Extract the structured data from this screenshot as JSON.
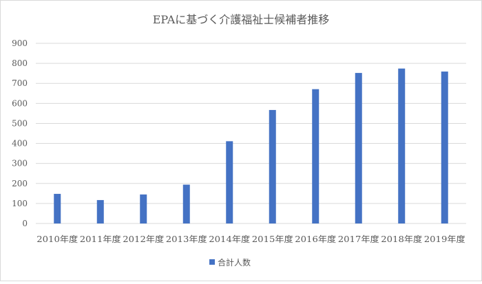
{
  "chart_data": {
    "type": "bar",
    "title": "EPAに基づく介護福祉士候補者推移",
    "categories": [
      "2010年度",
      "2011年度",
      "2012年度",
      "2013年度",
      "2014年度",
      "2015年度",
      "2016年度",
      "2017年度",
      "2018年度",
      "2019年度"
    ],
    "series": [
      {
        "name": "合計人数",
        "values": [
          148,
          117,
          145,
          194,
          411,
          567,
          671,
          752,
          774,
          759
        ]
      }
    ],
    "ylim": [
      0,
      900
    ],
    "yticks": [
      0,
      100,
      200,
      300,
      400,
      500,
      600,
      700,
      800,
      900
    ],
    "grid": true,
    "legend_position": "bottom",
    "colors": {
      "bar": "#4472c4",
      "grid": "#d9d9d9",
      "text": "#595959",
      "border": "#d9d9d9"
    }
  }
}
